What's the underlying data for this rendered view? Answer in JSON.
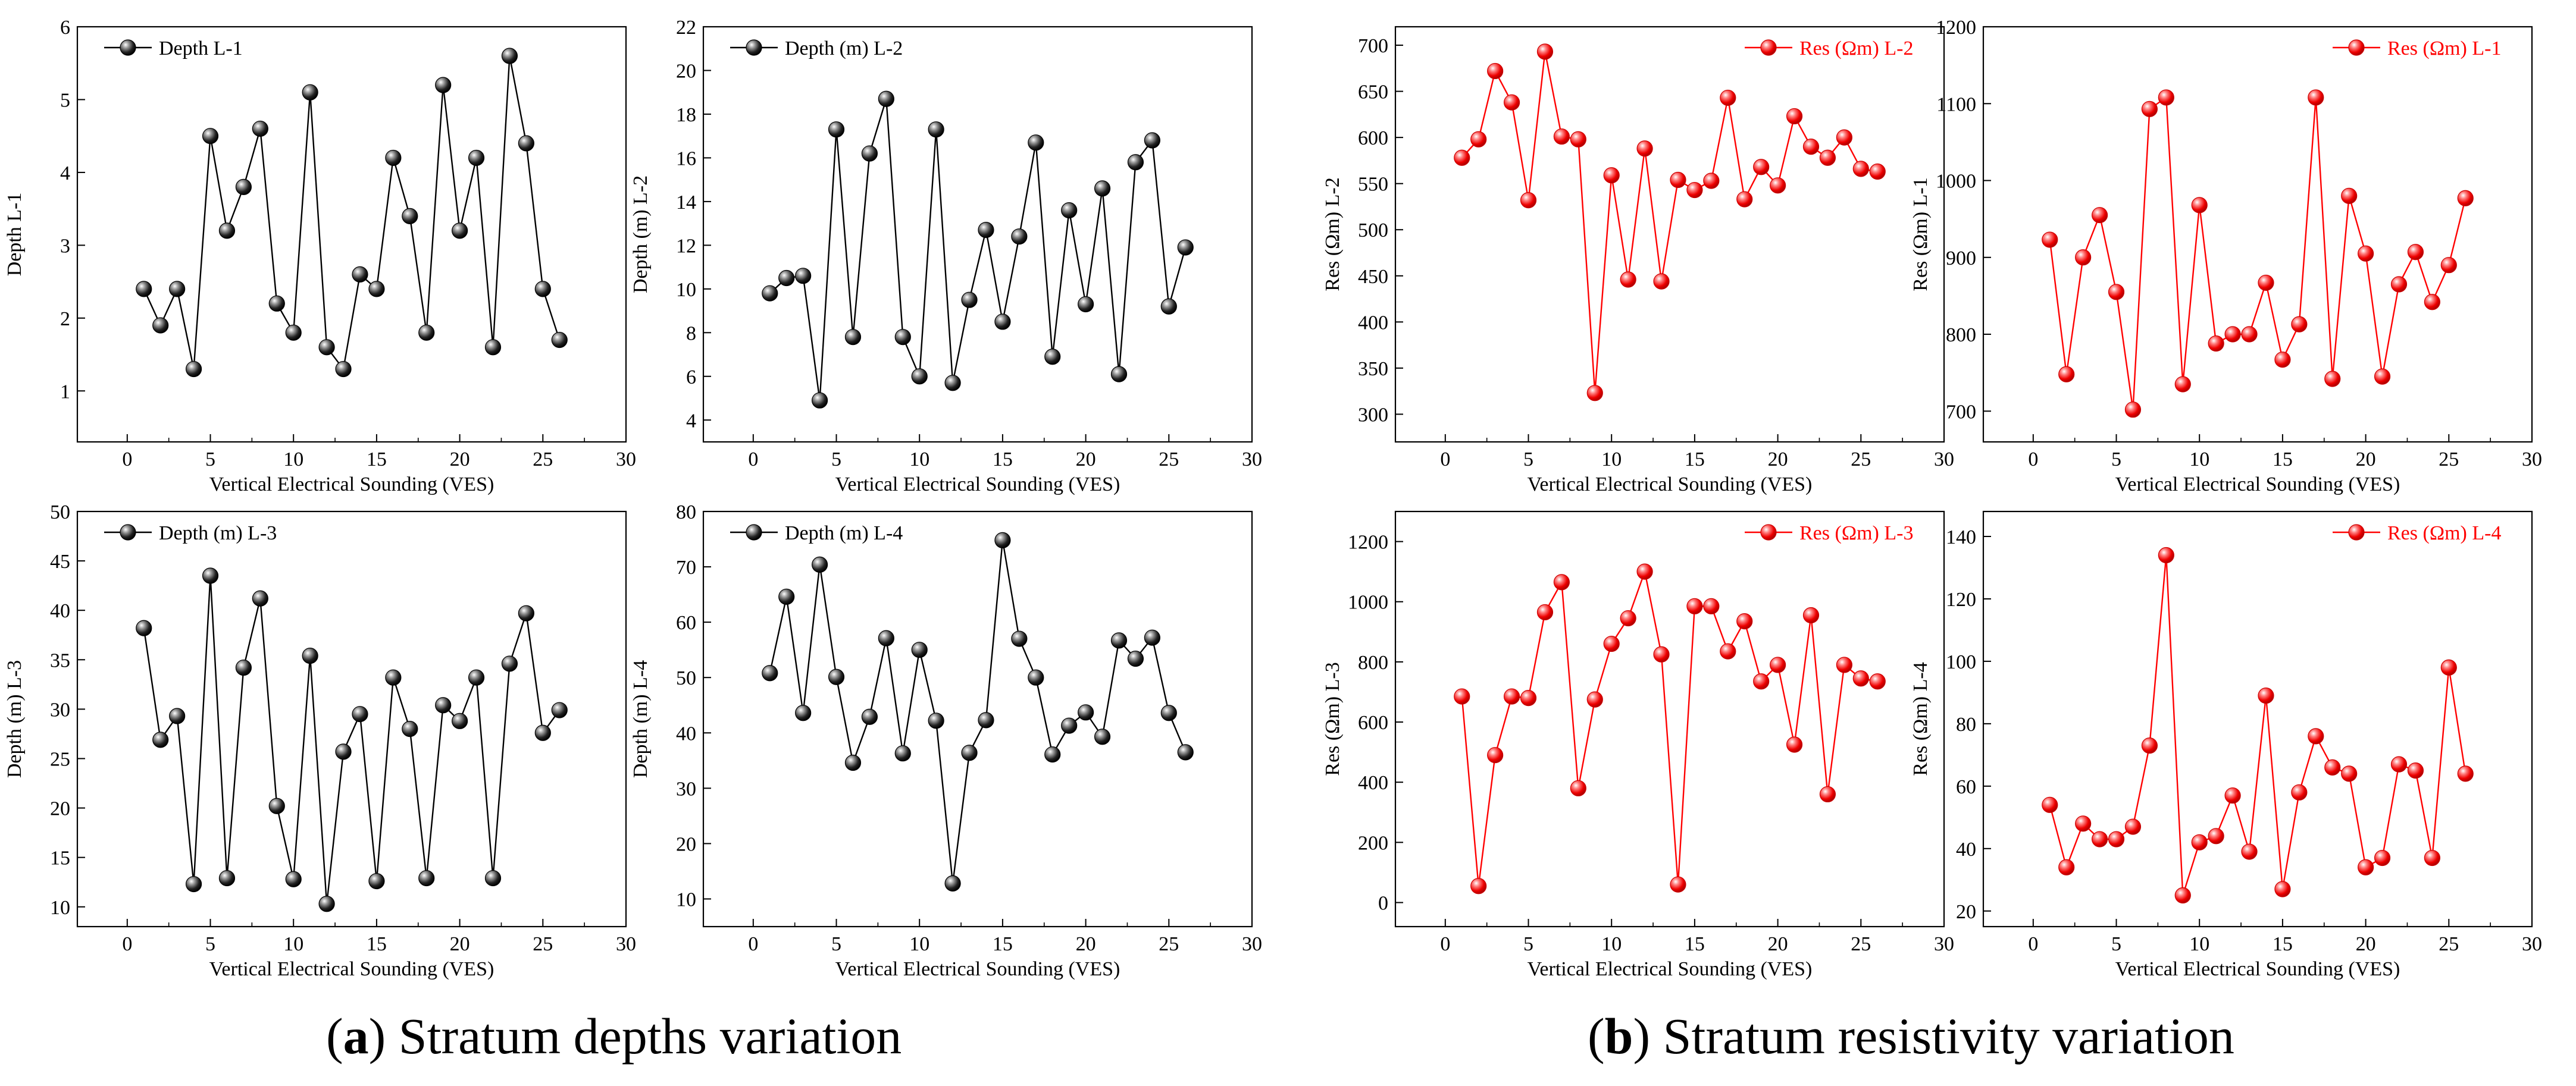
{
  "figure": {
    "caption_a": {
      "label": "a",
      "text": "Stratum depths variation"
    },
    "caption_b": {
      "label": "b",
      "text": "Stratum resistivity variation"
    }
  },
  "colors": {
    "depth_series": "#000000",
    "res_series": "#ff0000",
    "axis": "#000000"
  },
  "chart_data": [
    {
      "id": "depth-l1",
      "type": "line",
      "panel": "a",
      "xlabel": "Vertical Electrical Sounding (VES)",
      "ylabel": "Depth L-1",
      "xlim": [
        -3,
        30
      ],
      "xticks": [
        0,
        5,
        10,
        15,
        20,
        25,
        30
      ],
      "ylim": [
        0.3,
        6
      ],
      "yticks": [
        1,
        2,
        3,
        4,
        5,
        6
      ],
      "legend": "Depth L-1",
      "legend_position": "top-left",
      "color": "#000000",
      "marker": "sphere",
      "x": [
        1,
        2,
        3,
        4,
        5,
        6,
        7,
        8,
        9,
        10,
        11,
        12,
        13,
        14,
        15,
        16,
        17,
        18,
        19,
        20,
        21,
        22,
        23,
        24,
        25,
        26
      ],
      "y": [
        2.4,
        1.9,
        2.4,
        1.3,
        4.5,
        3.2,
        3.8,
        4.6,
        2.2,
        1.8,
        5.1,
        1.6,
        1.3,
        2.6,
        2.4,
        4.2,
        3.4,
        1.8,
        5.2,
        3.2,
        4.2,
        1.6,
        5.6,
        4.4,
        2.4,
        1.7
      ]
    },
    {
      "id": "depth-l2",
      "type": "line",
      "panel": "a",
      "xlabel": "Vertical Electrical Sounding (VES)",
      "ylabel": "Depth (m) L-2",
      "xlim": [
        -3,
        30
      ],
      "xticks": [
        0,
        5,
        10,
        15,
        20,
        25,
        30
      ],
      "ylim": [
        3,
        22
      ],
      "yticks": [
        4,
        6,
        8,
        10,
        12,
        14,
        16,
        18,
        20,
        22
      ],
      "legend": "Depth (m) L-2",
      "legend_position": "top-left",
      "color": "#000000",
      "marker": "sphere",
      "x": [
        1,
        2,
        3,
        4,
        5,
        6,
        7,
        8,
        9,
        10,
        11,
        12,
        13,
        14,
        15,
        16,
        17,
        18,
        19,
        20,
        21,
        22,
        23,
        24,
        25,
        26
      ],
      "y": [
        9.8,
        10.5,
        10.6,
        4.9,
        17.3,
        7.8,
        16.2,
        18.7,
        7.8,
        6.0,
        17.3,
        5.7,
        9.5,
        12.7,
        8.5,
        12.4,
        16.7,
        6.9,
        13.6,
        9.3,
        14.6,
        6.1,
        15.8,
        16.8,
        9.2,
        11.9
      ]
    },
    {
      "id": "depth-l3",
      "type": "line",
      "panel": "a",
      "xlabel": "Vertical Electrical Sounding (VES)",
      "ylabel": "Depth (m) L-3",
      "xlim": [
        -3,
        30
      ],
      "xticks": [
        0,
        5,
        10,
        15,
        20,
        25,
        30
      ],
      "ylim": [
        8,
        50
      ],
      "yticks": [
        10,
        15,
        20,
        25,
        30,
        35,
        40,
        45,
        50
      ],
      "legend": "Depth (m) L-3",
      "legend_position": "top-left",
      "color": "#000000",
      "marker": "sphere",
      "x": [
        1,
        2,
        3,
        4,
        5,
        6,
        7,
        8,
        9,
        10,
        11,
        12,
        13,
        14,
        15,
        16,
        17,
        18,
        19,
        20,
        21,
        22,
        23,
        24,
        25,
        26
      ],
      "y": [
        38.2,
        26.9,
        29.3,
        12.3,
        43.5,
        12.9,
        34.2,
        41.2,
        20.2,
        12.8,
        35.4,
        10.3,
        25.7,
        29.5,
        12.6,
        33.2,
        28.0,
        12.9,
        30.4,
        28.8,
        33.2,
        12.9,
        34.6,
        39.7,
        27.6,
        29.9
      ]
    },
    {
      "id": "depth-l4",
      "type": "line",
      "panel": "a",
      "xlabel": "Vertical Electrical Sounding (VES)",
      "ylabel": "Depth (m) L-4",
      "xlim": [
        -3,
        30
      ],
      "xticks": [
        0,
        5,
        10,
        15,
        20,
        25,
        30
      ],
      "ylim": [
        5,
        80
      ],
      "yticks": [
        10,
        20,
        30,
        40,
        50,
        60,
        70,
        80
      ],
      "legend": "Depth (m) L-4",
      "legend_position": "top-left",
      "color": "#000000",
      "marker": "sphere",
      "x": [
        1,
        2,
        3,
        4,
        5,
        6,
        7,
        8,
        9,
        10,
        11,
        12,
        13,
        14,
        15,
        16,
        17,
        18,
        19,
        20,
        21,
        22,
        23,
        24,
        25,
        26
      ],
      "y": [
        50.8,
        64.6,
        43.6,
        70.4,
        50.1,
        34.6,
        42.9,
        57.1,
        36.3,
        55.0,
        42.2,
        12.8,
        36.4,
        42.3,
        74.8,
        57.0,
        50.0,
        36.1,
        41.3,
        43.7,
        39.3,
        56.7,
        53.4,
        57.2,
        43.6,
        36.5
      ]
    },
    {
      "id": "res-l2",
      "type": "line",
      "panel": "b",
      "xlabel": "Vertical Electrical Sounding (VES)",
      "ylabel": "Res (Ωm) L-2",
      "xlim": [
        -3,
        30
      ],
      "xticks": [
        0,
        5,
        10,
        15,
        20,
        25,
        30
      ],
      "ylim": [
        270,
        720
      ],
      "yticks": [
        300,
        350,
        400,
        450,
        500,
        550,
        600,
        650,
        700
      ],
      "legend": "Res (Ωm) L-2",
      "legend_position": "top-right",
      "color": "#ff0000",
      "marker": "sphere",
      "x": [
        1,
        2,
        3,
        4,
        5,
        6,
        7,
        8,
        9,
        10,
        11,
        12,
        13,
        14,
        15,
        16,
        17,
        18,
        19,
        20,
        21,
        22,
        23,
        24,
        25,
        26
      ],
      "y": [
        578,
        598,
        672,
        638,
        532,
        693,
        601,
        598,
        323,
        559,
        446,
        588,
        444,
        554,
        543,
        553,
        643,
        533,
        568,
        548,
        623,
        590,
        578,
        600,
        566,
        563
      ]
    },
    {
      "id": "res-l1",
      "type": "line",
      "panel": "b",
      "xlabel": "Vertical Electrical Sounding (VES)",
      "ylabel": "Res (Ωm) L-1",
      "xlim": [
        -3,
        30
      ],
      "xticks": [
        0,
        5,
        10,
        15,
        20,
        25,
        30
      ],
      "ylim": [
        660,
        1200
      ],
      "yticks": [
        700,
        800,
        900,
        1000,
        1100,
        1200
      ],
      "legend": "Res (Ωm) L-1",
      "legend_position": "top-right",
      "color": "#ff0000",
      "marker": "sphere",
      "x": [
        1,
        2,
        3,
        4,
        5,
        6,
        7,
        8,
        9,
        10,
        11,
        12,
        13,
        14,
        15,
        16,
        17,
        18,
        19,
        20,
        21,
        22,
        23,
        24,
        25,
        26
      ],
      "y": [
        923,
        748,
        900,
        955,
        855,
        702,
        1093,
        1108,
        735,
        968,
        788,
        800,
        800,
        867,
        767,
        813,
        1108,
        742,
        980,
        905,
        745,
        865,
        907,
        842,
        890,
        977
      ]
    },
    {
      "id": "res-l3",
      "type": "line",
      "panel": "b",
      "xlabel": "Vertical Electrical Sounding (VES)",
      "ylabel": "Res (Ωm) L-3",
      "xlim": [
        -3,
        30
      ],
      "xticks": [
        0,
        5,
        10,
        15,
        20,
        25,
        30
      ],
      "ylim": [
        -80,
        1300
      ],
      "yticks": [
        0,
        200,
        400,
        600,
        800,
        1000,
        1200
      ],
      "legend": "Res (Ωm) L-3",
      "legend_position": "top-right",
      "color": "#ff0000",
      "marker": "sphere",
      "x": [
        1,
        2,
        3,
        4,
        5,
        6,
        7,
        8,
        9,
        10,
        11,
        12,
        13,
        14,
        15,
        16,
        17,
        18,
        19,
        20,
        21,
        22,
        23,
        24,
        25,
        26
      ],
      "y": [
        685,
        55,
        490,
        685,
        680,
        965,
        1065,
        380,
        675,
        860,
        945,
        1100,
        825,
        60,
        985,
        985,
        835,
        935,
        735,
        790,
        525,
        955,
        360,
        790,
        745,
        735
      ]
    },
    {
      "id": "res-l4",
      "type": "line",
      "panel": "b",
      "xlabel": "Vertical Electrical Sounding (VES)",
      "ylabel": "Res (Ωm) L-4",
      "xlim": [
        -3,
        30
      ],
      "xticks": [
        0,
        5,
        10,
        15,
        20,
        25,
        30
      ],
      "ylim": [
        15,
        148
      ],
      "yticks": [
        20,
        40,
        60,
        80,
        100,
        120,
        140
      ],
      "legend": "Res (Ωm) L-4",
      "legend_position": "top-right",
      "color": "#ff0000",
      "marker": "sphere",
      "x": [
        1,
        2,
        3,
        4,
        5,
        6,
        7,
        8,
        9,
        10,
        11,
        12,
        13,
        14,
        15,
        16,
        17,
        18,
        19,
        20,
        21,
        22,
        23,
        24,
        25,
        26
      ],
      "y": [
        54,
        34,
        48,
        43,
        43,
        47,
        73,
        134,
        25,
        42,
        44,
        57,
        39,
        89,
        27,
        58,
        76,
        66,
        64,
        34,
        37,
        67,
        65,
        37,
        98,
        64
      ]
    }
  ]
}
